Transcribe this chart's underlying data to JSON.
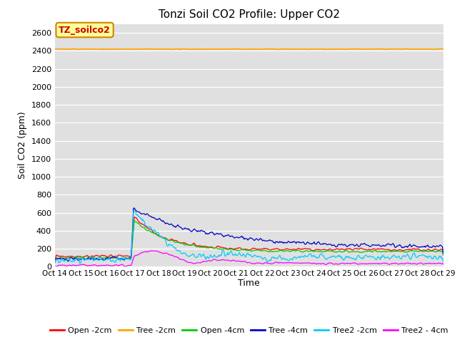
{
  "title": "Tonzi Soil CO2 Profile: Upper CO2",
  "ylabel": "Soil CO2 (ppm)",
  "xlabel": "Time",
  "annotation": "TZ_soilco2",
  "x_tick_labels": [
    "Oct 14",
    "Oct 15",
    "Oct 16",
    "Oct 17",
    "Oct 18",
    "Oct 19",
    "Oct 20",
    "Oct 21",
    "Oct 22",
    "Oct 23",
    "Oct 24",
    "Oct 25",
    "Oct 26",
    "Oct 27",
    "Oct 28",
    "Oct 29"
  ],
  "ylim": [
    0,
    2700
  ],
  "yticks": [
    0,
    200,
    400,
    600,
    800,
    1000,
    1200,
    1400,
    1600,
    1800,
    2000,
    2200,
    2400,
    2600
  ],
  "series_colors": {
    "Open -2cm": "#ff0000",
    "Tree -2cm": "#ffa500",
    "Open -4cm": "#00cc00",
    "Tree -4cm": "#0000cc",
    "Tree2 -2cm": "#00ccff",
    "Tree2 - 4cm": "#ff00ff"
  },
  "fig_bg_color": "#ffffff",
  "plot_bg_color": "#e0e0e0",
  "title_fontsize": 11,
  "annotation_bg": "#ffff99",
  "annotation_border": "#cc8800",
  "tree_2cm_flat_value": 2420,
  "num_points": 500,
  "legend_labels": [
    "Open -2cm",
    "Tree -2cm",
    "Open -4cm",
    "Tree -4cm",
    "Tree2 -2cm",
    "Tree2 - 4cm"
  ]
}
